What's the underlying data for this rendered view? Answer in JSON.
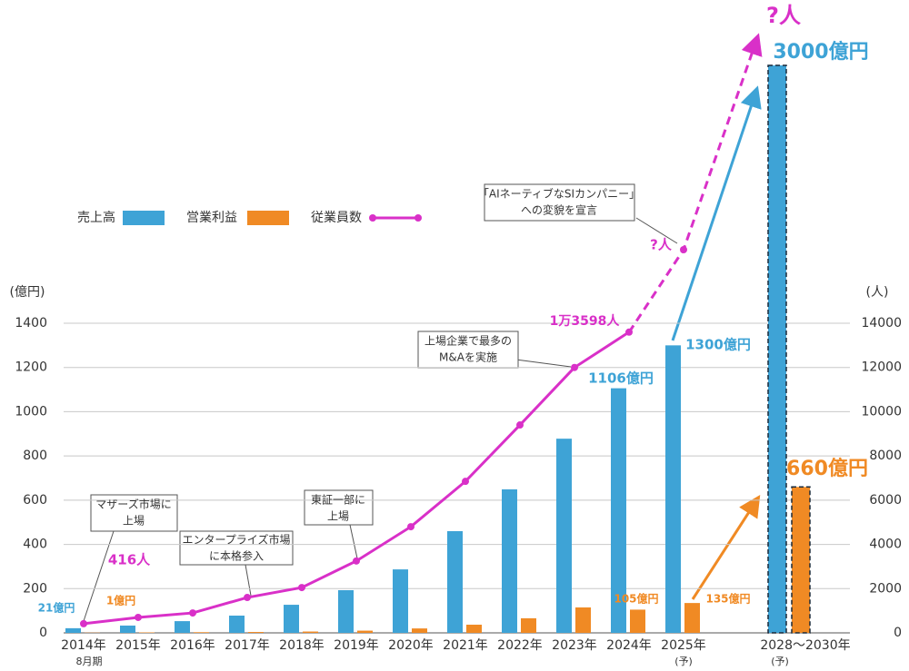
{
  "chart_data": {
    "type": "bar_line",
    "categories": [
      "2014年",
      "2015年",
      "2016年",
      "2017年",
      "2018年",
      "2019年",
      "2020年",
      "2021年",
      "2022年",
      "2023年",
      "2024年",
      "2025年",
      "2028〜2030年"
    ],
    "category_sublabels": [
      "8月期",
      null,
      null,
      null,
      null,
      null,
      null,
      null,
      null,
      null,
      null,
      "(予)",
      "(予)"
    ],
    "ylabel": "(億円)",
    "y2label": "(人)",
    "ylim": [
      0,
      1400
    ],
    "yticks": [
      0,
      200,
      400,
      600,
      800,
      1000,
      1200,
      1400
    ],
    "y2lim": [
      0,
      14000
    ],
    "y2ticks": [
      0,
      2000,
      4000,
      6000,
      8000,
      10000,
      12000,
      14000
    ],
    "grid": true,
    "series": [
      {
        "name": "売上高",
        "type": "bar",
        "color": "#3ea3d6",
        "values": [
          21,
          33,
          53,
          78,
          127,
          193,
          287,
          460,
          649,
          878,
          1106,
          1300,
          3000
        ],
        "value_labels": [
          "21億円",
          null,
          null,
          null,
          null,
          null,
          null,
          null,
          null,
          null,
          "1106億円",
          "1300億円",
          "3000億円"
        ]
      },
      {
        "name": "営業利益",
        "type": "bar",
        "color": "#f08a24",
        "values": [
          1,
          2,
          3,
          4,
          6,
          10,
          20,
          37,
          66,
          115,
          105,
          135,
          660
        ],
        "value_labels": [
          "1億円",
          null,
          null,
          null,
          null,
          null,
          null,
          null,
          null,
          null,
          "105億円",
          "135億円",
          "660億円"
        ]
      },
      {
        "name": "従業員数",
        "type": "line",
        "axis": "y2",
        "color": "#d930c8",
        "values": [
          416,
          700,
          900,
          1600,
          2050,
          3250,
          4800,
          6850,
          9400,
          12000,
          13598,
          null,
          null
        ],
        "value_labels": [
          "416人",
          null,
          null,
          null,
          null,
          null,
          null,
          null,
          null,
          null,
          "1万3598人",
          null,
          null
        ]
      }
    ],
    "annotations": [
      {
        "text": [
          "マザーズ市場に",
          "上場"
        ]
      },
      {
        "text": [
          "エンタープライズ市場",
          "に本格参入"
        ]
      },
      {
        "text": [
          "東証一部に",
          "上場"
        ]
      },
      {
        "text": [
          "上場企業で最多の",
          "M&Aを実施"
        ]
      },
      {
        "text": [
          "「AIネーティブなSIカンパニー」",
          "への変貌を宣言"
        ]
      },
      {
        "text": [
          "?人"
        ]
      },
      {
        "text": [
          "?人"
        ]
      }
    ]
  }
}
